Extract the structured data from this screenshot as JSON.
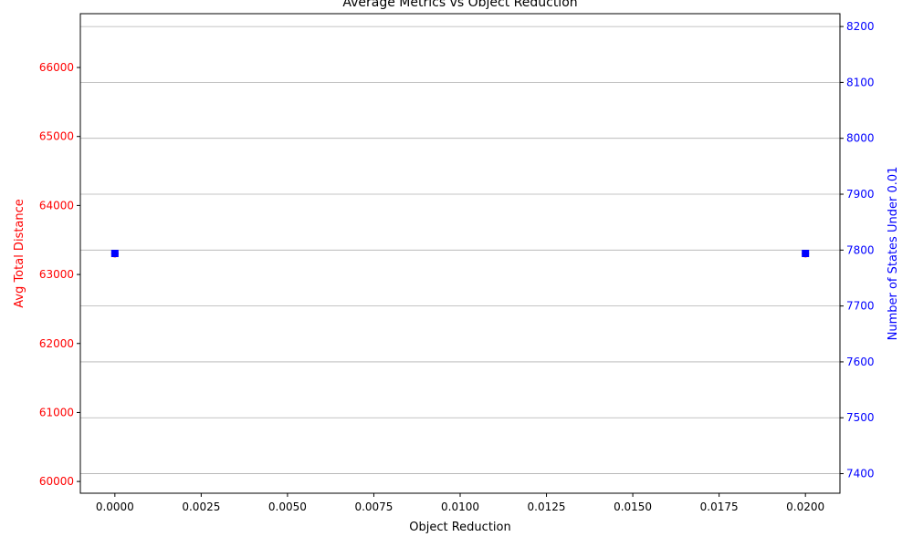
{
  "chart_data": {
    "type": "scatter",
    "title": "Average Metrics vs Object Reduction",
    "xlabel": "Object Reduction",
    "xlim": [
      -0.001,
      0.021
    ],
    "x_ticks": [
      "0.0000",
      "0.0025",
      "0.0050",
      "0.0075",
      "0.0100",
      "0.0125",
      "0.0150",
      "0.0175",
      "0.0200"
    ],
    "x_tick_values": [
      0,
      0.0025,
      0.005,
      0.0075,
      0.01,
      0.0125,
      0.015,
      0.0175,
      0.02
    ],
    "y_left": {
      "label": "Avg Total Distance",
      "color": "#ff0000",
      "lim": [
        59830,
        66780
      ],
      "ticks": [
        "60000",
        "61000",
        "62000",
        "63000",
        "64000",
        "65000",
        "66000"
      ],
      "tick_values": [
        60000,
        61000,
        62000,
        63000,
        64000,
        65000,
        66000
      ]
    },
    "y_right": {
      "label": "Number of States Under 0.01",
      "color": "#0000ff",
      "lim": [
        7365,
        8223
      ],
      "ticks": [
        "7400",
        "7500",
        "7600",
        "7700",
        "7800",
        "7900",
        "8000",
        "8100",
        "8200"
      ],
      "tick_values": [
        7400,
        7500,
        7600,
        7700,
        7800,
        7900,
        8000,
        8100,
        8200
      ]
    },
    "grid": "right-axis horizontal",
    "series": [
      {
        "axis": "left",
        "color": "#ff0000",
        "marker": "circle",
        "x": [
          0,
          0.02
        ],
        "y": [
          63300,
          63300
        ]
      },
      {
        "axis": "right",
        "color": "#0000ff",
        "marker": "square",
        "x": [
          0,
          0.02
        ],
        "y": [
          7794,
          7794
        ]
      }
    ]
  }
}
